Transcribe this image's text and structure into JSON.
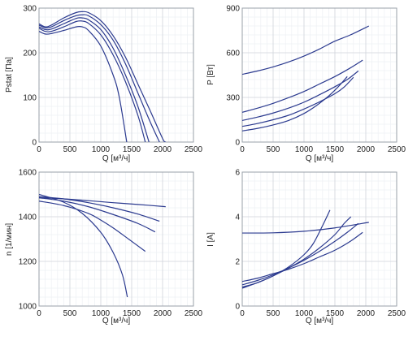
{
  "chart_data": [
    {
      "type": "line",
      "xlabel": "Q [м³/ч]",
      "ylabel": "Pstat [Па]",
      "xlim": [
        0,
        2500
      ],
      "ylim": [
        0,
        300
      ],
      "xticks": [
        "0",
        "500",
        "1000",
        "1500",
        "2000",
        "2500"
      ],
      "yticks": [
        "0",
        "100",
        "200",
        "300"
      ],
      "grid": true,
      "series": [
        {
          "x": [
            0,
            100,
            200,
            400,
            600,
            700,
            800,
            1000,
            1200,
            1400,
            1600,
            1800,
            2000,
            2050
          ],
          "y": [
            265,
            258,
            262,
            278,
            290,
            292,
            290,
            272,
            238,
            190,
            130,
            70,
            8,
            0
          ]
        },
        {
          "x": [
            0,
            100,
            200,
            400,
            600,
            700,
            800,
            1000,
            1200,
            1400,
            1600,
            1800,
            1950
          ],
          "y": [
            262,
            256,
            258,
            272,
            283,
            285,
            283,
            263,
            228,
            175,
            110,
            45,
            0
          ]
        },
        {
          "x": [
            0,
            100,
            200,
            400,
            600,
            700,
            800,
            1000,
            1200,
            1400,
            1600,
            1780
          ],
          "y": [
            258,
            252,
            253,
            265,
            277,
            278,
            274,
            252,
            210,
            150,
            80,
            0
          ]
        },
        {
          "x": [
            0,
            100,
            200,
            400,
            600,
            700,
            800,
            1000,
            1200,
            1400,
            1600,
            1720
          ],
          "y": [
            255,
            248,
            248,
            258,
            270,
            271,
            266,
            240,
            195,
            135,
            60,
            0
          ]
        },
        {
          "x": [
            0,
            100,
            200,
            400,
            600,
            700,
            800,
            1000,
            1200,
            1300,
            1420
          ],
          "y": [
            248,
            242,
            243,
            250,
            258,
            258,
            250,
            215,
            150,
            100,
            0
          ]
        }
      ]
    },
    {
      "type": "line",
      "xlabel": "Q [м³/ч]",
      "ylabel": "P [Вт]",
      "xlim": [
        0,
        2500
      ],
      "ylim": [
        0,
        900
      ],
      "xticks": [
        "0",
        "500",
        "1000",
        "1500",
        "2000",
        "2500"
      ],
      "yticks": [
        "0",
        "300",
        "600",
        "900"
      ],
      "grid": true,
      "series": [
        {
          "x": [
            0,
            250,
            500,
            750,
            1000,
            1250,
            1500,
            1750,
            2050
          ],
          "y": [
            455,
            478,
            505,
            538,
            578,
            625,
            678,
            720,
            780
          ]
        },
        {
          "x": [
            0,
            250,
            500,
            750,
            1000,
            1250,
            1500,
            1750,
            1950
          ],
          "y": [
            200,
            228,
            260,
            298,
            340,
            390,
            440,
            498,
            550
          ]
        },
        {
          "x": [
            0,
            250,
            500,
            750,
            1000,
            1250,
            1500,
            1700,
            1880
          ],
          "y": [
            145,
            168,
            195,
            228,
            268,
            318,
            372,
            420,
            478
          ]
        },
        {
          "x": [
            0,
            250,
            500,
            750,
            1000,
            1250,
            1500,
            1650,
            1800
          ],
          "y": [
            105,
            125,
            150,
            180,
            222,
            270,
            325,
            370,
            435
          ]
        },
        {
          "x": [
            0,
            250,
            500,
            750,
            1000,
            1200,
            1400,
            1550,
            1700
          ],
          "y": [
            75,
            92,
            115,
            145,
            192,
            245,
            310,
            370,
            440
          ]
        }
      ]
    },
    {
      "type": "line",
      "xlabel": "Q [м³/ч]",
      "ylabel": "n [1/мин]",
      "xlim": [
        0,
        2500
      ],
      "ylim": [
        1000,
        1600
      ],
      "xticks": [
        "0",
        "500",
        "1000",
        "1500",
        "2000",
        "2500"
      ],
      "yticks": [
        "1000",
        "1200",
        "1400",
        "1600"
      ],
      "grid": true,
      "series": [
        {
          "x": [
            0,
            400,
            800,
            1200,
            1600,
            2050
          ],
          "y": [
            1485,
            1480,
            1472,
            1463,
            1455,
            1445
          ]
        },
        {
          "x": [
            0,
            400,
            800,
            1200,
            1600,
            1950
          ],
          "y": [
            1490,
            1480,
            1463,
            1440,
            1412,
            1380
          ]
        },
        {
          "x": [
            0,
            400,
            800,
            1200,
            1600,
            1880
          ],
          "y": [
            1485,
            1470,
            1445,
            1410,
            1370,
            1332
          ]
        },
        {
          "x": [
            0,
            400,
            800,
            1000,
            1200,
            1450,
            1720
          ],
          "y": [
            1470,
            1450,
            1415,
            1385,
            1350,
            1300,
            1245
          ]
        },
        {
          "x": [
            0,
            400,
            700,
            1000,
            1200,
            1350,
            1430
          ],
          "y": [
            1500,
            1465,
            1415,
            1330,
            1240,
            1140,
            1040
          ]
        }
      ]
    },
    {
      "type": "line",
      "xlabel": "Q [м³/ч]",
      "ylabel": "I [A]",
      "xlim": [
        0,
        2500
      ],
      "ylim": [
        0,
        6
      ],
      "xticks": [
        "0",
        "500",
        "1000",
        "1500",
        "2000",
        "2500"
      ],
      "yticks": [
        "0",
        "2",
        "4",
        "6"
      ],
      "grid": true,
      "series": [
        {
          "x": [
            0,
            500,
            1000,
            1500,
            2050
          ],
          "y": [
            3.27,
            3.28,
            3.35,
            3.5,
            3.75
          ]
        },
        {
          "x": [
            0,
            250,
            500,
            750,
            1000,
            1250,
            1500,
            1750,
            1950
          ],
          "y": [
            1.1,
            1.25,
            1.45,
            1.65,
            1.9,
            2.2,
            2.5,
            2.9,
            3.3
          ]
        },
        {
          "x": [
            0,
            250,
            500,
            750,
            1000,
            1250,
            1500,
            1700,
            1880
          ],
          "y": [
            0.95,
            1.15,
            1.4,
            1.7,
            2.05,
            2.45,
            2.9,
            3.3,
            3.7
          ]
        },
        {
          "x": [
            0,
            250,
            500,
            750,
            1000,
            1250,
            1500,
            1650,
            1760
          ],
          "y": [
            0.85,
            1.05,
            1.35,
            1.7,
            2.1,
            2.6,
            3.2,
            3.7,
            4.0
          ]
        },
        {
          "x": [
            0,
            250,
            500,
            750,
            1000,
            1150,
            1300,
            1420
          ],
          "y": [
            0.8,
            1.05,
            1.35,
            1.75,
            2.3,
            2.8,
            3.6,
            4.3
          ]
        }
      ]
    }
  ]
}
